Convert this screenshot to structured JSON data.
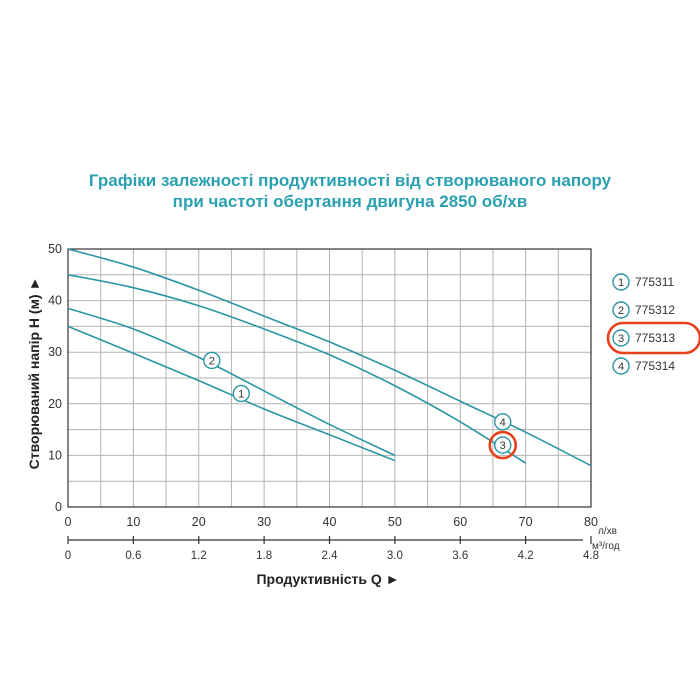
{
  "chart_data": {
    "type": "line",
    "title": "Графіки залежності продуктивності від створюваного напору",
    "subtitle": "при частоті обертання двигуна 2850 об/хв",
    "xlabel": "Продуктивність  Q ►",
    "ylabel": "Створюваний напір Н (м) ►",
    "x_unit": "л/хв",
    "x2_unit": "м³/год",
    "xlim": [
      0,
      80
    ],
    "ylim": [
      0,
      50
    ],
    "x_ticks": [
      0,
      10,
      20,
      30,
      40,
      50,
      60,
      70,
      80
    ],
    "x2_ticks": [
      "0",
      "0.6",
      "1.2",
      "1.8",
      "2.4",
      "3.0",
      "3.6",
      "4.2",
      "4.8"
    ],
    "y_ticks": [
      0,
      10,
      20,
      30,
      40,
      50
    ],
    "grid": true,
    "legend_position": "right",
    "series": [
      {
        "name": "775311",
        "marker": "1",
        "marker_at": [
          26.5,
          22
        ],
        "x": [
          0,
          10,
          20,
          30,
          40,
          50
        ],
        "y": [
          35,
          29.8,
          24.5,
          19,
          14,
          9
        ]
      },
      {
        "name": "775312",
        "marker": "2",
        "marker_at": [
          22,
          28.4
        ],
        "x": [
          0,
          10,
          20,
          30,
          40,
          50
        ],
        "y": [
          38.5,
          34.5,
          29,
          22.5,
          16,
          10
        ]
      },
      {
        "name": "775313",
        "marker": "3",
        "marker_at": [
          66.5,
          12
        ],
        "x": [
          0,
          10,
          20,
          30,
          40,
          50,
          60,
          70
        ],
        "y": [
          45,
          42.5,
          39,
          34.5,
          29.5,
          23.5,
          16.5,
          8.5
        ]
      },
      {
        "name": "775314",
        "marker": "4",
        "marker_at": [
          66.5,
          16.5
        ],
        "x": [
          0,
          10,
          20,
          30,
          40,
          50,
          60,
          70,
          80
        ],
        "y": [
          50,
          46.5,
          42,
          37,
          32,
          26.5,
          20.5,
          14.5,
          8
        ]
      }
    ],
    "highlighted_series": "775313",
    "highlight_color": "#e8401c",
    "line_color": "#2a95a5",
    "title_color": "#2aa0b0"
  }
}
